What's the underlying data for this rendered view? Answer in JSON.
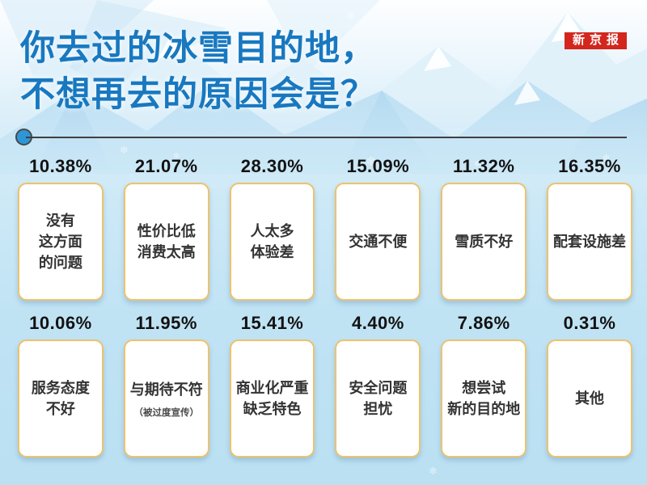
{
  "header": {
    "title_line1": "你去过的冰雪目的地，",
    "title_line2": "不想再去的原因会是？",
    "logo_text": "新京报"
  },
  "colors": {
    "title_blue": "#1878c0",
    "logo_red": "#d3261d",
    "card_border": "#eec26c",
    "divider_dark": "#3f3f3f",
    "divider_dot_blue": "#2e96d8",
    "background_blue": "#bae0f2"
  },
  "decor": {
    "snowflake_glyph": "❄"
  },
  "cards": [
    {
      "percent": "10.38%",
      "lines": [
        "没有",
        "这方面",
        "的问题"
      ]
    },
    {
      "percent": "21.07%",
      "lines": [
        "性价比低",
        "消费太高"
      ]
    },
    {
      "percent": "28.30%",
      "lines": [
        "人太多",
        "体验差"
      ]
    },
    {
      "percent": "15.09%",
      "lines": [
        "交通不便"
      ]
    },
    {
      "percent": "11.32%",
      "lines": [
        "雪质不好"
      ]
    },
    {
      "percent": "16.35%",
      "lines": [
        "配套设施差"
      ]
    },
    {
      "percent": "10.06%",
      "lines": [
        "服务态度",
        "不好"
      ]
    },
    {
      "percent": "11.95%",
      "lines": [
        "与期待不符"
      ],
      "note": "（被过度宣传）"
    },
    {
      "percent": "15.41%",
      "lines": [
        "商业化严重",
        "缺乏特色"
      ]
    },
    {
      "percent": "4.40%",
      "lines": [
        "安全问题",
        "担忧"
      ]
    },
    {
      "percent": "7.86%",
      "lines": [
        "想尝试",
        "新的目的地"
      ]
    },
    {
      "percent": "0.31%",
      "lines": [
        "其他"
      ]
    }
  ],
  "chart_data": {
    "type": "table",
    "title": "你去过的冰雪目的地，不想再去的原因会是？",
    "unit": "%",
    "categories": [
      "没有这方面的问题",
      "性价比低消费太高",
      "人太多体验差",
      "交通不便",
      "雪质不好",
      "配套设施差",
      "服务态度不好",
      "与期待不符（被过度宣传）",
      "商业化严重缺乏特色",
      "安全问题担忧",
      "想尝试新的目的地",
      "其他"
    ],
    "values": [
      10.38,
      21.07,
      28.3,
      15.09,
      11.32,
      16.35,
      10.06,
      11.95,
      15.41,
      4.4,
      7.86,
      0.31
    ],
    "layout": "grid-2x6",
    "legend": "off",
    "grid": "off"
  }
}
